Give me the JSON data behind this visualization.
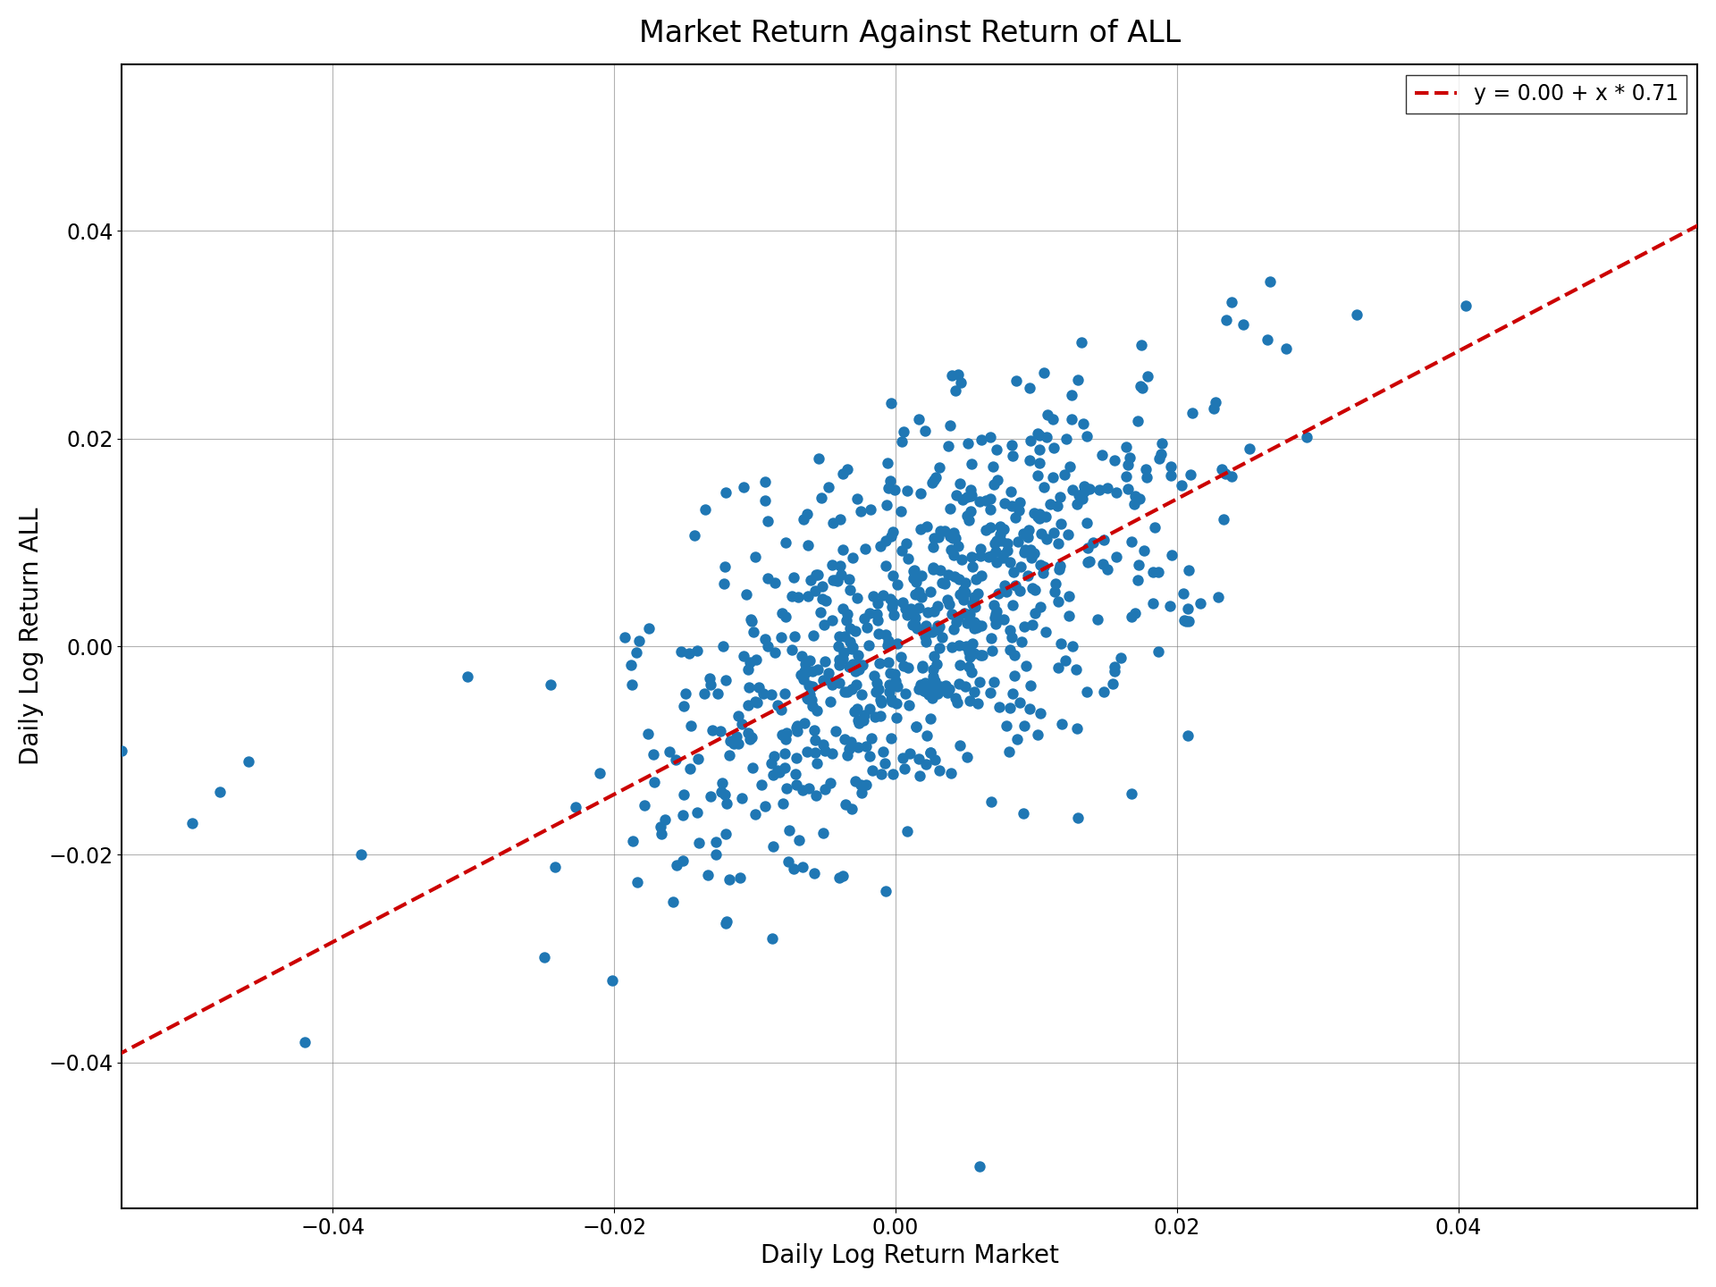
{
  "title": "Market Return Against Return of ALL",
  "xlabel": "Daily Log Return Market",
  "ylabel": "Daily Log Return ALL",
  "regression_label": "y = 0.00 + x * 0.71",
  "intercept": 0.0,
  "slope": 0.71,
  "dot_color": "#1f77b4",
  "line_color": "#cc0000",
  "dot_size": 80,
  "dot_alpha": 1.0,
  "xlim": [
    -0.055,
    0.057
  ],
  "ylim": [
    -0.054,
    0.056
  ],
  "line_xlim": [
    -0.058,
    0.058
  ],
  "seed": 42,
  "n_points": 750,
  "market_std": 0.01,
  "noise_std": 0.009,
  "title_fontsize": 24,
  "label_fontsize": 20,
  "tick_fontsize": 17,
  "legend_fontsize": 17,
  "extra_x": [
    -0.055,
    -0.048,
    -0.042,
    -0.038,
    -0.046,
    -0.05,
    0.006
  ],
  "extra_y": [
    -0.01,
    -0.014,
    -0.038,
    -0.02,
    -0.011,
    -0.017,
    -0.05
  ]
}
